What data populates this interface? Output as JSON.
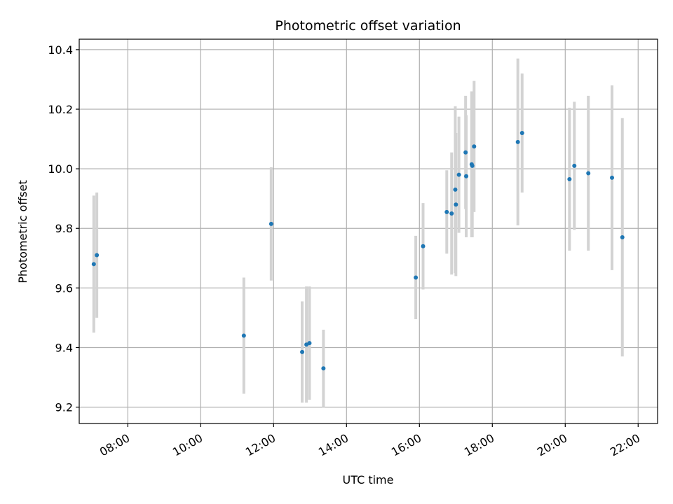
{
  "chart_data": {
    "type": "scatter",
    "title": "Photometric offset variation",
    "xlabel": "UTC time",
    "ylabel": "Photometric offset",
    "x_tick_labels": [
      "08:00",
      "10:00",
      "12:00",
      "14:00",
      "16:00",
      "18:00",
      "20:00",
      "22:00"
    ],
    "x_ticks": [
      "08:00",
      "10:00",
      "12:00",
      "14:00",
      "16:00",
      "18:00",
      "20:00",
      "22:00"
    ],
    "y_tick_labels": [
      "9.2",
      "9.4",
      "9.6",
      "9.8",
      "10.0",
      "10.2",
      "10.4"
    ],
    "y_ticks": [
      9.2,
      9.4,
      9.6,
      9.8,
      10.0,
      10.2,
      10.4
    ],
    "xlim": [
      "06:40",
      "22:32"
    ],
    "ylim": [
      9.145,
      10.435
    ],
    "grid": true,
    "marker_color": "#1f77b4",
    "errorbar_color": "#d3d3d3",
    "points": [
      {
        "t": "07:04",
        "y": 9.68,
        "err": 0.23
      },
      {
        "t": "07:09",
        "y": 9.71,
        "err": 0.21
      },
      {
        "t": "11:11",
        "y": 9.44,
        "err": 0.195
      },
      {
        "t": "11:56",
        "y": 9.815,
        "err": 0.19
      },
      {
        "t": "12:47",
        "y": 9.385,
        "err": 0.17
      },
      {
        "t": "12:54",
        "y": 9.41,
        "err": 0.195
      },
      {
        "t": "12:59",
        "y": 9.415,
        "err": 0.19
      },
      {
        "t": "13:22",
        "y": 9.33,
        "err": 0.13
      },
      {
        "t": "15:54",
        "y": 9.635,
        "err": 0.14
      },
      {
        "t": "16:06",
        "y": 9.74,
        "err": 0.145
      },
      {
        "t": "16:45",
        "y": 9.855,
        "err": 0.14
      },
      {
        "t": "16:53",
        "y": 9.85,
        "err": 0.205
      },
      {
        "t": "16:59",
        "y": 9.93,
        "err": 0.28
      },
      {
        "t": "17:00",
        "y": 9.88,
        "err": 0.24
      },
      {
        "t": "17:05",
        "y": 9.98,
        "err": 0.195
      },
      {
        "t": "17:16",
        "y": 10.055,
        "err": 0.19
      },
      {
        "t": "17:17",
        "y": 9.975,
        "err": 0.205
      },
      {
        "t": "17:26",
        "y": 10.015,
        "err": 0.245
      },
      {
        "t": "17:27",
        "y": 10.01,
        "err": 0.24
      },
      {
        "t": "17:30",
        "y": 10.075,
        "err": 0.22
      },
      {
        "t": "18:42",
        "y": 10.09,
        "err": 0.28
      },
      {
        "t": "18:49",
        "y": 10.12,
        "err": 0.2
      },
      {
        "t": "20:07",
        "y": 9.965,
        "err": 0.24
      },
      {
        "t": "20:15",
        "y": 10.01,
        "err": 0.215
      },
      {
        "t": "20:38",
        "y": 9.985,
        "err": 0.26
      },
      {
        "t": "21:17",
        "y": 9.97,
        "err": 0.31
      },
      {
        "t": "21:34",
        "y": 9.77,
        "err": 0.4
      }
    ]
  }
}
